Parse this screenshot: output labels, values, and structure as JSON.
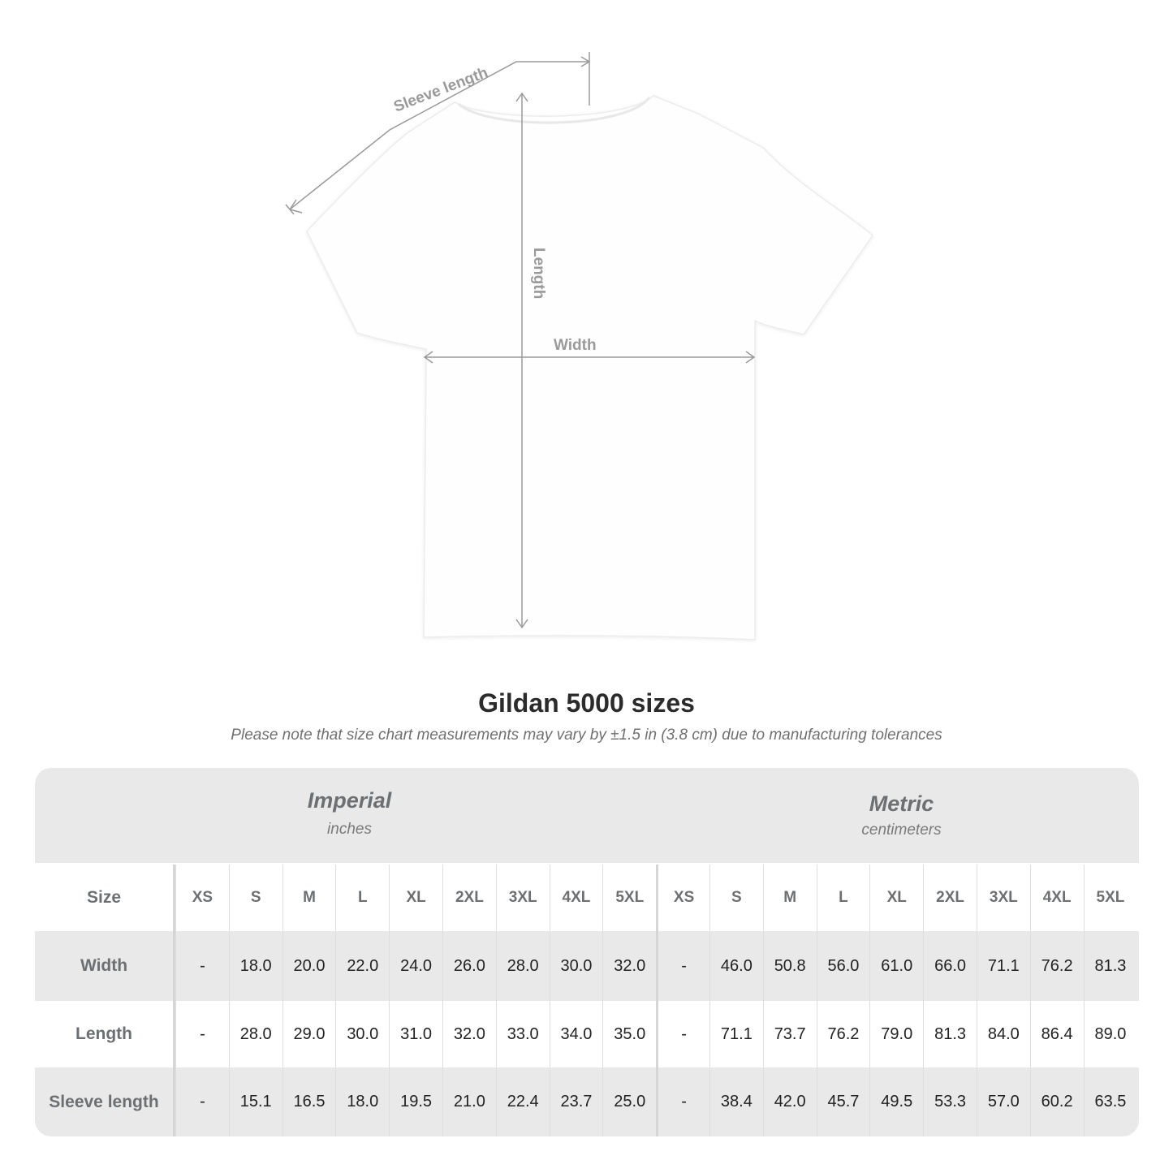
{
  "diagram": {
    "labels": {
      "sleeve": "Sleeve length",
      "length": "Length",
      "width": "Width"
    },
    "line_color": "#9a9a9a"
  },
  "title": "Gildan 5000 sizes",
  "subtitle": "Please note that size chart measurements may vary by ±1.5 in (3.8 cm) due to manufacturing tolerances",
  "table": {
    "imperial": {
      "name": "Imperial",
      "unit": "inches"
    },
    "metric": {
      "name": "Metric",
      "unit": "centimeters"
    },
    "size_label": "Size",
    "sizes": [
      "XS",
      "S",
      "M",
      "L",
      "XL",
      "2XL",
      "3XL",
      "4XL",
      "5XL"
    ],
    "rows": [
      {
        "label": "Width",
        "imperial": [
          "-",
          "18.0",
          "20.0",
          "22.0",
          "24.0",
          "26.0",
          "28.0",
          "30.0",
          "32.0"
        ],
        "metric": [
          "-",
          "46.0",
          "50.8",
          "56.0",
          "61.0",
          "66.0",
          "71.1",
          "76.2",
          "81.3"
        ]
      },
      {
        "label": "Length",
        "imperial": [
          "-",
          "28.0",
          "29.0",
          "30.0",
          "31.0",
          "32.0",
          "33.0",
          "34.0",
          "35.0"
        ],
        "metric": [
          "-",
          "71.1",
          "73.7",
          "76.2",
          "79.0",
          "81.3",
          "84.0",
          "86.4",
          "89.0"
        ]
      },
      {
        "label": "Sleeve length",
        "imperial": [
          "-",
          "15.1",
          "16.5",
          "18.0",
          "19.5",
          "21.0",
          "22.4",
          "23.7",
          "25.0"
        ],
        "metric": [
          "-",
          "38.4",
          "42.0",
          "45.7",
          "49.5",
          "53.3",
          "57.0",
          "60.2",
          "63.5"
        ]
      }
    ],
    "colors": {
      "header_bg": "#e9e9e9",
      "label_text": "#6c7073"
    }
  }
}
